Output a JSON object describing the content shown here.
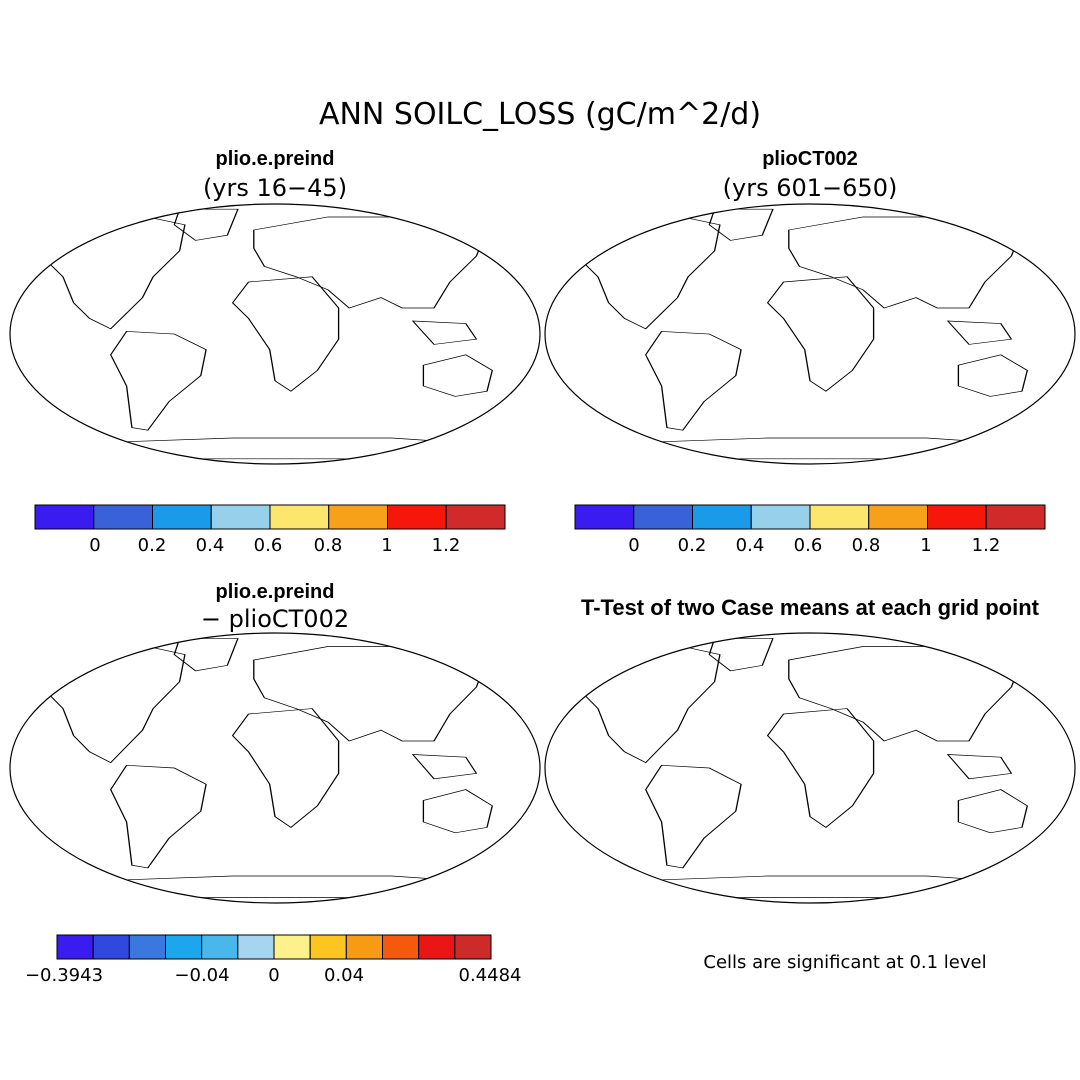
{
  "title": "ANN SOILC_LOSS (gC/m^2/d)",
  "panels": [
    {
      "title": "plio.e.preind",
      "subtitle": "(yrs 16−45)",
      "kind": "case"
    },
    {
      "title": "plioCT002",
      "subtitle": "(yrs 601−650)",
      "kind": "case"
    },
    {
      "title": "plio.e.preind",
      "subtitle": "− plioCT002",
      "kind": "diff"
    },
    {
      "title": "T-Test of two Case means at each grid point",
      "subtitle": "",
      "kind": "ttest"
    }
  ],
  "colorbars": {
    "case": {
      "colors": [
        "#3a1cf0",
        "#3a62d8",
        "#1a9ae8",
        "#96d0ea",
        "#fde66e",
        "#f7a01a",
        "#f5170a",
        "#d12a2a"
      ],
      "labels": [
        "0",
        "0.2",
        "0.4",
        "0.6",
        "0.8",
        "1",
        "1.2"
      ]
    },
    "diff": {
      "colors": [
        "#3a1cf0",
        "#2f48de",
        "#3a78e0",
        "#1ba6ee",
        "#4ab7ec",
        "#a6d6ef",
        "#fdf18c",
        "#fcc520",
        "#f79a14",
        "#f55a0c",
        "#ea1616",
        "#cd2a2a"
      ],
      "labels": [
        "−0.3943",
        "−0.04",
        "0",
        "0.04",
        "0.4484"
      ]
    }
  },
  "significance_note": "Cells are significant at 0.1 level"
}
